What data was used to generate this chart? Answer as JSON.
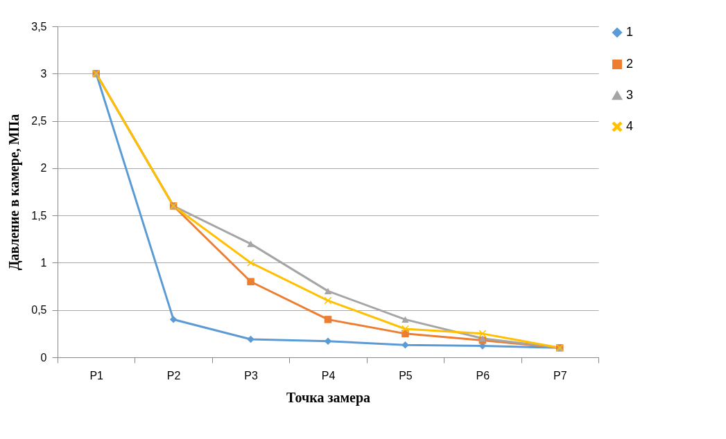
{
  "chart_data": {
    "type": "line",
    "xlabel": "Точка замера",
    "ylabel": "Давление в камере, МПа",
    "categories": [
      "P1",
      "P2",
      "P3",
      "P4",
      "P5",
      "P6",
      "P7"
    ],
    "series": [
      {
        "name": "1",
        "color": "#5b9bd5",
        "marker": "diamond",
        "values": [
          3,
          0.4,
          0.19,
          0.17,
          0.13,
          0.12,
          0.1
        ]
      },
      {
        "name": "2",
        "color": "#ed7d31",
        "marker": "square",
        "values": [
          3,
          1.6,
          0.8,
          0.4,
          0.25,
          0.18,
          0.1
        ]
      },
      {
        "name": "3",
        "color": "#a5a5a5",
        "marker": "triangle",
        "values": [
          3,
          1.6,
          1.2,
          0.7,
          0.4,
          0.2,
          0.1
        ]
      },
      {
        "name": "4",
        "color": "#ffc000",
        "marker": "cross",
        "values": [
          3,
          1.6,
          1.0,
          0.6,
          0.3,
          0.25,
          0.1
        ]
      }
    ],
    "ylim": [
      0,
      3.5
    ],
    "yticks": [
      0,
      {
        "value": 0.5,
        "label": "0,5"
      },
      1,
      {
        "value": 1.5,
        "label": "1,5"
      },
      2,
      {
        "value": 2.5,
        "label": "2,5"
      },
      3,
      {
        "value": 3.5,
        "label": "3,5"
      }
    ],
    "grid": "y",
    "legend": "right",
    "line_style": "solid"
  }
}
